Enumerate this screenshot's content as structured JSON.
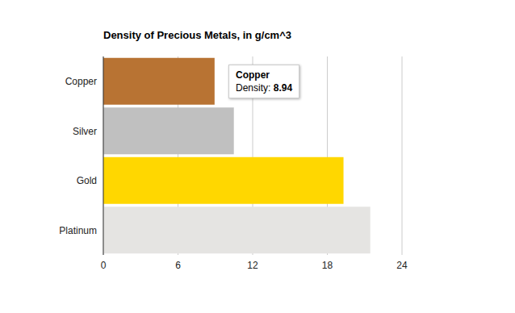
{
  "chart_data": {
    "type": "bar",
    "orientation": "horizontal",
    "title": "Density of Precious Metals, in g/cm^3",
    "categories": [
      "Copper",
      "Silver",
      "Gold",
      "Platinum"
    ],
    "values": [
      8.94,
      10.49,
      19.3,
      21.45
    ],
    "colors": [
      "#b87333",
      "#c0c0c0",
      "#ffd700",
      "#e5e4e2"
    ],
    "xlim": [
      0,
      24
    ],
    "xticks": [
      0,
      6,
      12,
      18,
      24
    ],
    "grid": true,
    "tooltip": {
      "category": "Copper",
      "label": "Density:",
      "value": 8.94
    }
  }
}
